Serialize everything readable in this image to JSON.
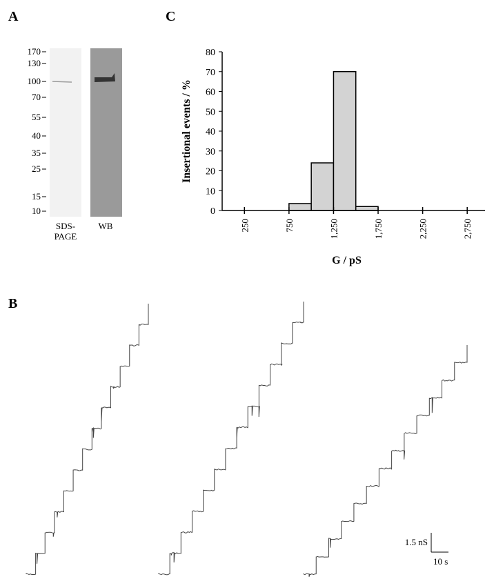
{
  "panel_labels": [
    "A",
    "B",
    "C"
  ],
  "gel": {
    "markers": [
      170,
      130,
      100,
      70,
      55,
      40,
      35,
      25,
      15,
      10
    ],
    "lanes": [
      "SDS-PAGE",
      "WB"
    ]
  },
  "scale_bar": {
    "y_label": "1.5 nS",
    "x_label": "10 s"
  },
  "chart_data": {
    "type": "histogram",
    "y_label": "Insertional events / %",
    "x_label": "G / pS",
    "bins": [
      750,
      1000,
      1250,
      1500,
      1750
    ],
    "values": [
      3.5,
      24,
      70,
      2
    ],
    "color": "#d3d3d3",
    "xlim": [
      0,
      2950
    ],
    "xticks": [
      {
        "value": 250,
        "label": "250"
      },
      {
        "value": 750,
        "label": "750"
      },
      {
        "value": 1250,
        "label": "1,250"
      },
      {
        "value": 1750,
        "label": "1,750"
      },
      {
        "value": 2250,
        "label": "2,250"
      },
      {
        "value": 2750,
        "label": "2,750"
      }
    ],
    "ylim": [
      0,
      80
    ],
    "yticks": [
      0,
      10,
      20,
      30,
      40,
      50,
      60,
      70,
      80
    ]
  }
}
